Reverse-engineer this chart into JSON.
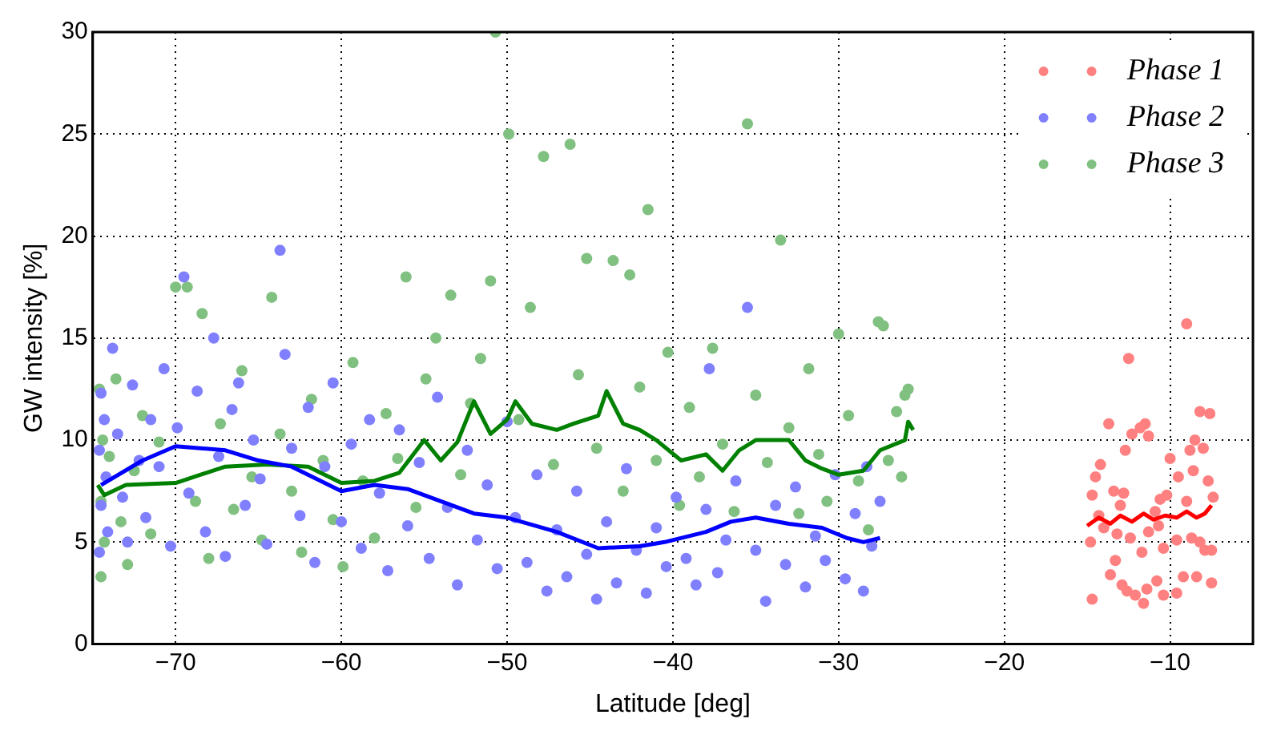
{
  "chart_data": {
    "type": "scatter",
    "xlabel": "Latitude [deg]",
    "ylabel": "GW intensity [%]",
    "xlim": [
      -75,
      -5
    ],
    "xticks": [
      -70,
      -60,
      -50,
      -40,
      -30,
      -20,
      -10
    ],
    "ylim": [
      0,
      30
    ],
    "yticks": [
      0,
      5,
      10,
      15,
      20,
      25,
      30
    ],
    "grid": true,
    "legend": "top right",
    "marker": "circle",
    "series": [
      {
        "name": "Phase 1",
        "color": "#ff8080",
        "x": [
          -12.5,
          -9,
          -14.5,
          -14.7,
          -14.2,
          -13.7,
          -12.7,
          -12.3,
          -11.8,
          -11.5,
          -11.3,
          -10,
          -8.2,
          -7.6,
          -8.5,
          -8.8,
          -8,
          -8.6,
          -7.7,
          -7.4,
          -10.2,
          -10.6,
          -9.5,
          -12.8,
          -13.4,
          -14.8,
          -14,
          -13.2,
          -12.4,
          -11.3,
          -10.4,
          -9.6,
          -8.2,
          -7.5,
          -7.9,
          -10.7,
          -11.7,
          -13.6,
          -14.7,
          -12.9,
          -12.1,
          -11.4,
          -10.8,
          -9.2,
          -8.4,
          -7.5,
          -9.6,
          -10.4,
          -11.6,
          -12.6,
          -13.3,
          -9,
          -8.7,
          -10.9,
          -14.3,
          -13
        ],
        "values": [
          14,
          15.7,
          8.2,
          7.3,
          8.8,
          10.8,
          9.5,
          10.3,
          10.6,
          10.8,
          10.2,
          9.1,
          11.4,
          11.3,
          10,
          9.5,
          9.6,
          8.5,
          8,
          7.2,
          7.3,
          7.1,
          8.2,
          7.4,
          7.5,
          5,
          5.7,
          5.4,
          5.2,
          5.5,
          4.7,
          5.1,
          5,
          4.6,
          4.6,
          5.8,
          4.5,
          3.4,
          2.2,
          2.9,
          2.4,
          2.7,
          3.1,
          3.3,
          3.3,
          3,
          2.5,
          2.4,
          2,
          2.6,
          4.1,
          7.0,
          5.2,
          6.5,
          6.3,
          6.8
        ]
      },
      {
        "name": "Phase 2",
        "color": "#8080ff",
        "x": [
          -74.5,
          -74.3,
          -74.6,
          -74.2,
          -74.5,
          -74.1,
          -74.6,
          -73.8,
          -73.5,
          -73.2,
          -72.9,
          -72.6,
          -72.2,
          -71.8,
          -71.5,
          -71,
          -70.7,
          -70.3,
          -69.5,
          -69.9,
          -69.2,
          -68.7,
          -68.2,
          -67.7,
          -67.4,
          -67,
          -66.6,
          -66.2,
          -65.8,
          -65.3,
          -64.9,
          -64.5,
          -63.7,
          -63.4,
          -63,
          -62.5,
          -62,
          -61.6,
          -61,
          -60.5,
          -60,
          -59.4,
          -58.8,
          -58.3,
          -57.7,
          -57.2,
          -56.5,
          -56,
          -55.3,
          -54.7,
          -54.2,
          -53.6,
          -53,
          -52.4,
          -51.8,
          -51.2,
          -50.6,
          -50,
          -49.5,
          -48.8,
          -48.2,
          -47.6,
          -47,
          -46.4,
          -45.8,
          -45.2,
          -44.6,
          -44,
          -43.4,
          -42.8,
          -42.2,
          -41.6,
          -41,
          -40.4,
          -39.8,
          -39.2,
          -38.6,
          -38,
          -37.8,
          -37.3,
          -36.8,
          -36.2,
          -35.5,
          -35,
          -34.4,
          -33.8,
          -33.2,
          -32.6,
          -32,
          -31.4,
          -30.8,
          -30.2,
          -29.6,
          -29,
          -28.5,
          -28,
          -27.5,
          -28.3
        ],
        "values": [
          12.3,
          11,
          9.5,
          8.2,
          6.8,
          5.5,
          4.5,
          14.5,
          10.3,
          7.2,
          5,
          12.7,
          9,
          6.2,
          11,
          8.7,
          13.5,
          4.8,
          18,
          10.6,
          7.4,
          12.4,
          5.5,
          15,
          9.2,
          4.3,
          11.5,
          12.8,
          6.8,
          10,
          8.1,
          4.9,
          19.3,
          14.2,
          9.6,
          6.3,
          11.6,
          4,
          8.7,
          12.8,
          6,
          9.8,
          4.7,
          11,
          7.4,
          3.6,
          10.5,
          5.8,
          8.9,
          4.2,
          12.1,
          6.7,
          2.9,
          9.5,
          5.1,
          7.8,
          3.7,
          10.9,
          6.2,
          4,
          8.3,
          2.6,
          5.6,
          3.3,
          7.5,
          4.4,
          2.2,
          6,
          3,
          8.6,
          4.6,
          2.5,
          5.7,
          3.8,
          7.2,
          4.2,
          2.9,
          6.6,
          13.5,
          3.5,
          5.1,
          8,
          16.5,
          4.6,
          2.1,
          6.8,
          3.9,
          7.7,
          2.8,
          5.3,
          4.1,
          8.3,
          3.2,
          6.4,
          2.6,
          4.8,
          7,
          8.7
        ]
      },
      {
        "name": "Phase 3",
        "color": "#80c080",
        "x": [
          -74.6,
          -74.4,
          -74.5,
          -74.3,
          -74.5,
          -74,
          -73.6,
          -73.3,
          -72.9,
          -72.5,
          -72,
          -71.5,
          -71,
          -70,
          -69.3,
          -68.4,
          -68.8,
          -68,
          -67.3,
          -66.5,
          -66,
          -65.4,
          -64.8,
          -64.2,
          -63.7,
          -63,
          -62.4,
          -61.8,
          -61.1,
          -60.5,
          -59.9,
          -59.3,
          -58.7,
          -58,
          -57.3,
          -56.6,
          -56.1,
          -55.5,
          -54.9,
          -54.3,
          -53.4,
          -52.8,
          -52.2,
          -51.6,
          -51,
          -50.7,
          -49.9,
          -49.3,
          -48.6,
          -47.8,
          -47.2,
          -46.2,
          -45.7,
          -45.2,
          -44.6,
          -43.6,
          -43,
          -42.6,
          -42,
          -41.5,
          -41,
          -40.3,
          -39.6,
          -39,
          -38.4,
          -37.6,
          -37,
          -36.3,
          -35.5,
          -35,
          -34.3,
          -33.5,
          -33,
          -32.4,
          -31.8,
          -31.2,
          -30.7,
          -30,
          -29.4,
          -28.8,
          -28.2,
          -27.6,
          -27.3,
          -27,
          -26.5,
          -26,
          -25.8,
          -26.2
        ],
        "values": [
          12.5,
          10,
          7,
          5,
          3.3,
          9.2,
          13,
          6,
          3.9,
          8.5,
          11.2,
          5.4,
          9.9,
          17.5,
          17.5,
          16.2,
          7,
          4.2,
          10.8,
          6.6,
          13.4,
          8.2,
          5.1,
          17,
          10.3,
          7.5,
          4.5,
          12,
          9,
          6.1,
          3.8,
          13.8,
          8,
          5.2,
          11.3,
          9.1,
          18,
          6.7,
          13,
          15,
          17.1,
          8.3,
          11.8,
          14,
          17.8,
          30,
          25,
          11,
          16.5,
          23.9,
          8.8,
          24.5,
          13.2,
          18.9,
          9.6,
          18.8,
          7.5,
          18.1,
          12.6,
          21.3,
          9,
          14.3,
          6.8,
          11.6,
          8.2,
          14.5,
          9.8,
          6.5,
          25.5,
          12.2,
          8.9,
          19.8,
          10.6,
          6.4,
          13.5,
          9.3,
          7,
          15.2,
          11.2,
          8,
          5.6,
          15.8,
          15.6,
          9,
          11.4,
          12.2,
          12.5,
          8.2
        ]
      },
      {
        "type": "line",
        "marker": "none",
        "color": "#ff0000",
        "x": [
          -15,
          -14.3,
          -13.6,
          -13,
          -12.3,
          -11.6,
          -11,
          -10.3,
          -9.6,
          -9,
          -8.4,
          -7.9,
          -7.5
        ],
        "values": [
          5.8,
          6.2,
          5.9,
          6.3,
          6.0,
          6.4,
          6.1,
          6.3,
          6.2,
          6.5,
          6.2,
          6.4,
          6.8
        ]
      },
      {
        "type": "line",
        "marker": "none",
        "color": "#0000ff",
        "x": [
          -74.5,
          -72,
          -70,
          -67,
          -65,
          -63,
          -60,
          -58,
          -56,
          -54,
          -52,
          -50,
          -47,
          -44.5,
          -42,
          -40.5,
          -38,
          -36.5,
          -35,
          -33,
          -31,
          -29.5,
          -28.5,
          -27.5
        ],
        "values": [
          7.8,
          9,
          9.7,
          9.5,
          9,
          8.7,
          7.5,
          7.8,
          7.6,
          7,
          6.4,
          6.2,
          5.5,
          4.7,
          4.8,
          5,
          5.5,
          6,
          6.2,
          5.9,
          5.7,
          5.2,
          5,
          5.2
        ]
      },
      {
        "type": "line",
        "marker": "none",
        "color": "#008000",
        "x": [
          -74.7,
          -74.3,
          -73,
          -70,
          -67,
          -64.5,
          -62,
          -60,
          -58,
          -56.5,
          -55,
          -54,
          -53,
          -52,
          -51,
          -50,
          -49.5,
          -48.5,
          -47,
          -46,
          -44.5,
          -44,
          -43,
          -42,
          -41,
          -39.5,
          -38,
          -37,
          -36,
          -35,
          -33,
          -32,
          -31,
          -30,
          -28.5,
          -27.5,
          -26,
          -25.8,
          -25.5
        ],
        "values": [
          7.8,
          7.3,
          7.8,
          7.9,
          8.7,
          8.8,
          8.7,
          7.9,
          8,
          8.4,
          10,
          9,
          9.9,
          11.9,
          10.3,
          11,
          11.9,
          10.8,
          10.5,
          10.8,
          11.2,
          12.4,
          10.8,
          10.5,
          10,
          9,
          9.3,
          8.5,
          9.5,
          10,
          10,
          9,
          8.6,
          8.3,
          8.5,
          9.5,
          10,
          10.9,
          10.5
        ]
      }
    ]
  }
}
